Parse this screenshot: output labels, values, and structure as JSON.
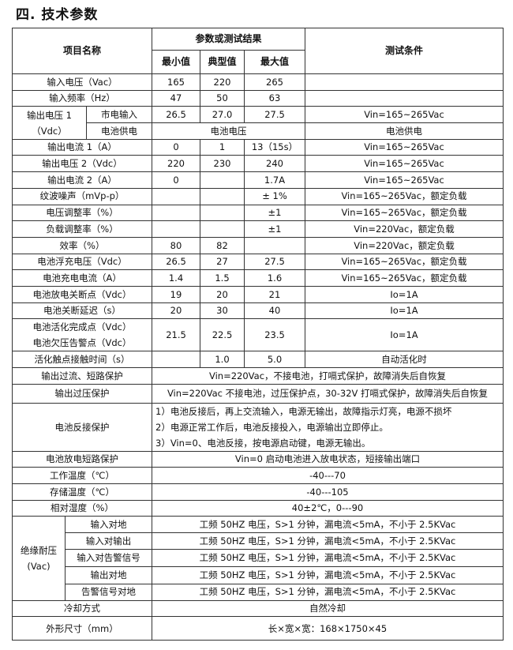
{
  "title": "四. 技术参数",
  "header": {
    "item": "项目名称",
    "result": "参数或测试结果",
    "min": "最小值",
    "typ": "典型值",
    "max": "最大值",
    "condition": "测试条件"
  },
  "rows": [
    {
      "type": "std",
      "name": "输入电压（Vac）",
      "min": "165",
      "typ": "220",
      "max": "265",
      "cond": ""
    },
    {
      "type": "std",
      "name": "输入频率（Hz）",
      "min": "47",
      "typ": "50",
      "max": "63",
      "cond": ""
    },
    {
      "type": "vout1",
      "name": "输出电压 1（Vdc）",
      "name_lines": [
        "输出电压 1",
        "（Vdc）"
      ],
      "sub": [
        {
          "label": "市电输入",
          "min": "26.5",
          "typ": "27.0",
          "max": "27.5",
          "cond": "Vin=165~265Vac"
        },
        {
          "label": "电池供电",
          "value": "电池电压",
          "cond": "电池供电"
        }
      ]
    },
    {
      "type": "std",
      "name": "输出电流 1（A）",
      "min": "0",
      "typ": "1",
      "max": "13（15s）",
      "cond": "Vin=165~265Vac"
    },
    {
      "type": "std",
      "name": "输出电压 2（Vdc）",
      "min": "220",
      "typ": "230",
      "max": "240",
      "cond": "Vin=165~265Vac"
    },
    {
      "type": "std",
      "name": "输出电流 2（A）",
      "min": "0",
      "typ": "",
      "max": "1.7A",
      "cond": "Vin=165~265Vac"
    },
    {
      "type": "std",
      "name": "纹波噪声（mVp-p）",
      "min": "",
      "typ": "",
      "max": "± 1%",
      "cond": "Vin=165~265Vac，额定负载"
    },
    {
      "type": "std",
      "name": "电压调整率（%）",
      "min": "",
      "typ": "",
      "max": "±1",
      "cond": "Vin=165~265Vac，额定负载"
    },
    {
      "type": "std",
      "name": "负载调整率（%）",
      "min": "",
      "typ": "",
      "max": "±1",
      "cond": "Vin=220Vac，额定负载"
    },
    {
      "type": "std",
      "name": "效率（%）",
      "min": "80",
      "typ": "82",
      "max": "",
      "cond": "Vin=220Vac，额定负载"
    },
    {
      "type": "std",
      "name": "电池浮充电压（Vdc）",
      "min": "26.5",
      "typ": "27",
      "max": "27.5",
      "cond": "Vin=165~265Vac，额定负载"
    },
    {
      "type": "std",
      "name": "电池充电电流（A）",
      "min": "1.4",
      "typ": "1.5",
      "max": "1.6",
      "cond": "Vin=165~265Vac，额定负载"
    },
    {
      "type": "std",
      "name": "电池放电关断点（Vdc）",
      "min": "19",
      "typ": "20",
      "max": "21",
      "cond": "Io=1A"
    },
    {
      "type": "std",
      "name": "电池关断延迟（s）",
      "min": "20",
      "typ": "30",
      "max": "40",
      "cond": "Io=1A"
    },
    {
      "type": "std2",
      "name_lines": [
        "电池活化完成点（Vdc）",
        "电池欠压告警点（Vdc）"
      ],
      "min": "21.5",
      "typ": "22.5",
      "max": "23.5",
      "cond": "Io=1A"
    },
    {
      "type": "std",
      "name": "活化触点接触时间（s）",
      "min": "",
      "typ": "1.0",
      "max": "5.0",
      "cond": "自动活化时"
    },
    {
      "type": "span",
      "name": "输出过流、短路保护",
      "value": "Vin=220Vac，不接电池，打嗝式保护，故障消失后自恢复"
    },
    {
      "type": "span",
      "name": "输出过压保护",
      "value": "Vin=220Vac 不接电池，过压保护点，30-32V 打嗝式保护，故障消失后自恢复"
    },
    {
      "type": "lines",
      "name": "电池反接保护",
      "lines": [
        "1）电池反接后，再上交流输入，电源无输出，故障指示灯亮，电源不损坏",
        "2）电源正常工作后，电池反接投入，电源输出立即停止。",
        "3）Vin=0、电池反接，按电源启动键，电源无输出。"
      ]
    },
    {
      "type": "span",
      "name": "电池放电短路保护",
      "value": "Vin=0 启动电池进入放电状态，短接输出端口"
    },
    {
      "type": "span",
      "name": "工作温度（℃）",
      "value": "-40---70"
    },
    {
      "type": "span",
      "name": "存储温度（℃）",
      "value": "-40---105"
    },
    {
      "type": "span",
      "name": "相对湿度（%）",
      "value": "40±2℃，0---90"
    },
    {
      "type": "insul",
      "name_lines": [
        "绝缘耐压",
        "(Vac)"
      ],
      "sub": [
        {
          "label": "输入对地",
          "value": "工频 50HZ 电压，S>1 分钟，漏电流<5mA，不小于 2.5KVac"
        },
        {
          "label": "输入对输出",
          "value": "工频 50HZ 电压，S>1 分钟，漏电流<5mA，不小于 2.5KVac"
        },
        {
          "label": "输入对告警信号",
          "value": "工频 50HZ 电压，S>1 分钟，漏电流<5mA，不小于 2.5KVac"
        },
        {
          "label": "输出对地",
          "value": "工频 50HZ 电压，S>1 分钟，漏电流<5mA，不小于 2.5KVac"
        },
        {
          "label": "告警信号对地",
          "value": "工频 50HZ 电压，S>1 分钟，漏电流<5mA，不小于 2.5KVac"
        }
      ]
    },
    {
      "type": "span",
      "name": "冷却方式",
      "value": "自然冷却"
    },
    {
      "type": "span",
      "name": "外形尺寸（mm）",
      "value": "长×宽×宽：168×1750×45"
    }
  ]
}
